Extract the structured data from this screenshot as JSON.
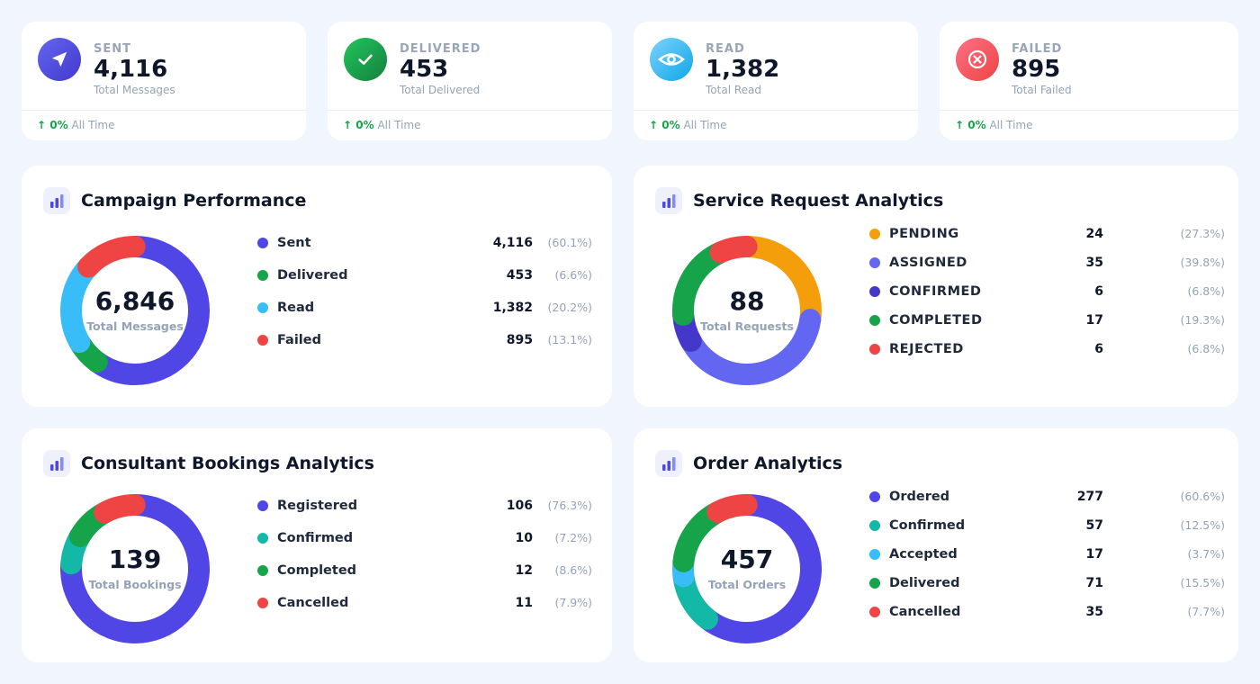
{
  "stats": [
    {
      "label": "SENT",
      "value": "4,116",
      "sub": "Total Messages",
      "change": "↑ 0%",
      "period": "All Time",
      "icon": "send-icon",
      "color": "#4f46e5"
    },
    {
      "label": "DELIVERED",
      "value": "453",
      "sub": "Total Delivered",
      "change": "↑ 0%",
      "period": "All Time",
      "icon": "check-icon",
      "color": "#16a34a"
    },
    {
      "label": "READ",
      "value": "1,382",
      "sub": "Total Read",
      "change": "↑ 0%",
      "period": "All Time",
      "icon": "eye-icon",
      "color": "#38bdf8"
    },
    {
      "label": "FAILED",
      "value": "895",
      "sub": "Total Failed",
      "change": "↑ 0%",
      "period": "All Time",
      "icon": "x-circle-icon",
      "color": "#ef4444"
    }
  ],
  "panels": {
    "campaign": {
      "title": "Campaign Performance",
      "total": "6,846",
      "total_label": "Total Messages",
      "chart_data": {
        "type": "pie",
        "categories": [
          "Sent",
          "Delivered",
          "Read",
          "Failed"
        ],
        "values": [
          4116,
          453,
          1382,
          895
        ],
        "percents": [
          "(60.1%)",
          "(6.6%)",
          "(20.2%)",
          "(13.1%)"
        ],
        "display_values": [
          "4,116",
          "453",
          "1,382",
          "895"
        ],
        "colors": [
          "#4f46e5",
          "#16a34a",
          "#38bdf8",
          "#ef4444"
        ]
      }
    },
    "service": {
      "title": "Service Request Analytics",
      "total": "88",
      "total_label": "Total Requests",
      "chart_data": {
        "type": "pie",
        "categories": [
          "PENDING",
          "ASSIGNED",
          "CONFIRMED",
          "COMPLETED",
          "REJECTED"
        ],
        "values": [
          24,
          35,
          6,
          17,
          6
        ],
        "percents": [
          "(27.3%)",
          "(39.8%)",
          "(6.8%)",
          "(19.3%)",
          "(6.8%)"
        ],
        "display_values": [
          "24",
          "35",
          "6",
          "17",
          "6"
        ],
        "colors": [
          "#f59e0b",
          "#6366f1",
          "#4338ca",
          "#16a34a",
          "#ef4444"
        ]
      }
    },
    "consultant": {
      "title": "Consultant Bookings Analytics",
      "total": "139",
      "total_label": "Total Bookings",
      "chart_data": {
        "type": "pie",
        "categories": [
          "Registered",
          "Confirmed",
          "Completed",
          "Cancelled"
        ],
        "values": [
          106,
          10,
          12,
          11
        ],
        "percents": [
          "(76.3%)",
          "(7.2%)",
          "(8.6%)",
          "(7.9%)"
        ],
        "display_values": [
          "106",
          "10",
          "12",
          "11"
        ],
        "colors": [
          "#4f46e5",
          "#14b8a6",
          "#16a34a",
          "#ef4444"
        ]
      }
    },
    "orders": {
      "title": "Order Analytics",
      "total": "457",
      "total_label": "Total Orders",
      "chart_data": {
        "type": "pie",
        "categories": [
          "Ordered",
          "Confirmed",
          "Accepted",
          "Delivered",
          "Cancelled"
        ],
        "values": [
          277,
          57,
          17,
          71,
          35
        ],
        "percents": [
          "(60.6%)",
          "(12.5%)",
          "(3.7%)",
          "(15.5%)",
          "(7.7%)"
        ],
        "display_values": [
          "277",
          "57",
          "17",
          "71",
          "35"
        ],
        "colors": [
          "#4f46e5",
          "#14b8a6",
          "#38bdf8",
          "#16a34a",
          "#ef4444"
        ]
      }
    }
  }
}
